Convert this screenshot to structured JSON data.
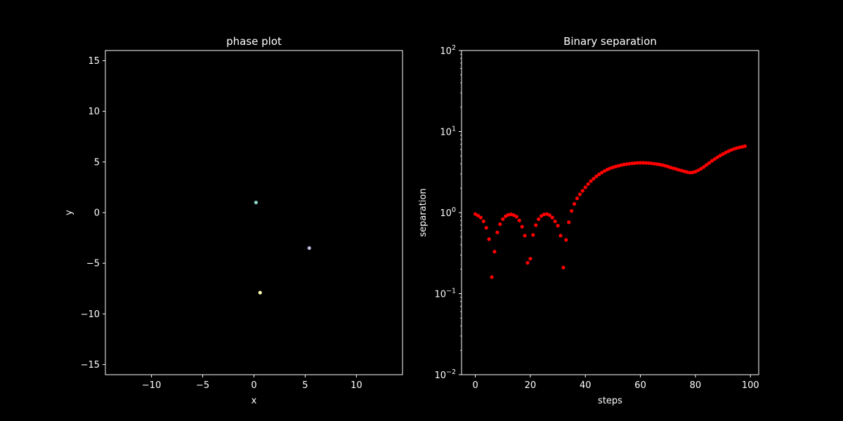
{
  "chart_data": [
    {
      "type": "scatter",
      "title": "phase plot",
      "xlabel": "x",
      "ylabel": "y",
      "xlim": [
        -14.5,
        14.5
      ],
      "ylim": [
        -16,
        16
      ],
      "xticks": [
        -10,
        -5,
        0,
        5,
        10
      ],
      "yticks": [
        -15,
        -10,
        -5,
        0,
        5,
        10,
        15
      ],
      "xtick_labels": [
        "−10",
        "−5",
        "0",
        "5",
        "10"
      ],
      "ytick_labels": [
        "−15",
        "−10",
        "−5",
        "0",
        "5",
        "10",
        "15"
      ],
      "grid": false,
      "background": "#000000",
      "points": [
        {
          "x": 0.2,
          "y": 1.0,
          "color": "#8dd3c7"
        },
        {
          "x": 5.4,
          "y": -3.5,
          "color": "#bebada"
        },
        {
          "x": 0.6,
          "y": -7.9,
          "color": "#ffffb3"
        }
      ]
    },
    {
      "type": "scatter",
      "title": "Binary separation",
      "xlabel": "steps",
      "ylabel": "separation",
      "yscale": "log",
      "xlim": [
        -5,
        103
      ],
      "ylim": [
        0.01,
        100
      ],
      "xticks": [
        0,
        20,
        40,
        60,
        80,
        100
      ],
      "xtick_labels": [
        "0",
        "20",
        "40",
        "60",
        "80",
        "100"
      ],
      "yticks": [
        0.01,
        0.1,
        1,
        10,
        100
      ],
      "ytick_labels": [
        {
          "base": "10",
          "exp": "−2"
        },
        {
          "base": "10",
          "exp": "−1"
        },
        {
          "base": "10",
          "exp": "0"
        },
        {
          "base": "10",
          "exp": "1"
        },
        {
          "base": "10",
          "exp": "2"
        }
      ],
      "grid": false,
      "marker_color": "#ff0000",
      "series": [
        {
          "x": [
            0,
            1,
            2,
            3,
            4,
            5,
            6,
            7,
            8,
            9,
            10,
            11,
            12,
            13,
            14,
            15,
            16,
            17,
            18,
            19,
            20,
            21,
            22,
            23,
            24,
            25,
            26,
            27,
            28,
            29,
            30,
            31,
            32,
            33,
            34,
            35,
            36,
            37,
            38,
            39,
            40,
            41,
            42,
            43,
            44,
            45,
            46,
            47,
            48,
            49,
            50,
            51,
            52,
            53,
            54,
            55,
            56,
            57,
            58,
            59,
            60,
            61,
            62,
            63,
            64,
            65,
            66,
            67,
            68,
            69,
            70,
            71,
            72,
            73,
            74,
            75,
            76,
            77,
            78,
            79,
            80,
            81,
            82,
            83,
            84,
            85,
            86,
            87,
            88,
            89,
            90,
            91,
            92,
            93,
            94,
            95,
            96,
            97,
            98
          ],
          "values": [
            0.96,
            0.92,
            0.87,
            0.78,
            0.65,
            0.47,
            0.16,
            0.33,
            0.57,
            0.72,
            0.83,
            0.9,
            0.94,
            0.95,
            0.93,
            0.89,
            0.8,
            0.67,
            0.52,
            0.24,
            0.27,
            0.53,
            0.7,
            0.83,
            0.91,
            0.95,
            0.96,
            0.93,
            0.87,
            0.78,
            0.69,
            0.52,
            0.21,
            0.46,
            0.76,
            1.05,
            1.28,
            1.5,
            1.68,
            1.86,
            2.05,
            2.25,
            2.45,
            2.62,
            2.8,
            2.97,
            3.12,
            3.27,
            3.4,
            3.52,
            3.62,
            3.7,
            3.78,
            3.85,
            3.92,
            3.97,
            4.01,
            4.05,
            4.08,
            4.1,
            4.12,
            4.12,
            4.1,
            4.08,
            4.05,
            4.01,
            3.97,
            3.92,
            3.86,
            3.79,
            3.7,
            3.6,
            3.52,
            3.45,
            3.36,
            3.3,
            3.22,
            3.16,
            3.11,
            3.13,
            3.2,
            3.32,
            3.47,
            3.65,
            3.87,
            4.1,
            4.35,
            4.58,
            4.82,
            5.05,
            5.28,
            5.5,
            5.72,
            5.92,
            6.1,
            6.25,
            6.38,
            6.48,
            6.6
          ]
        }
      ]
    }
  ]
}
